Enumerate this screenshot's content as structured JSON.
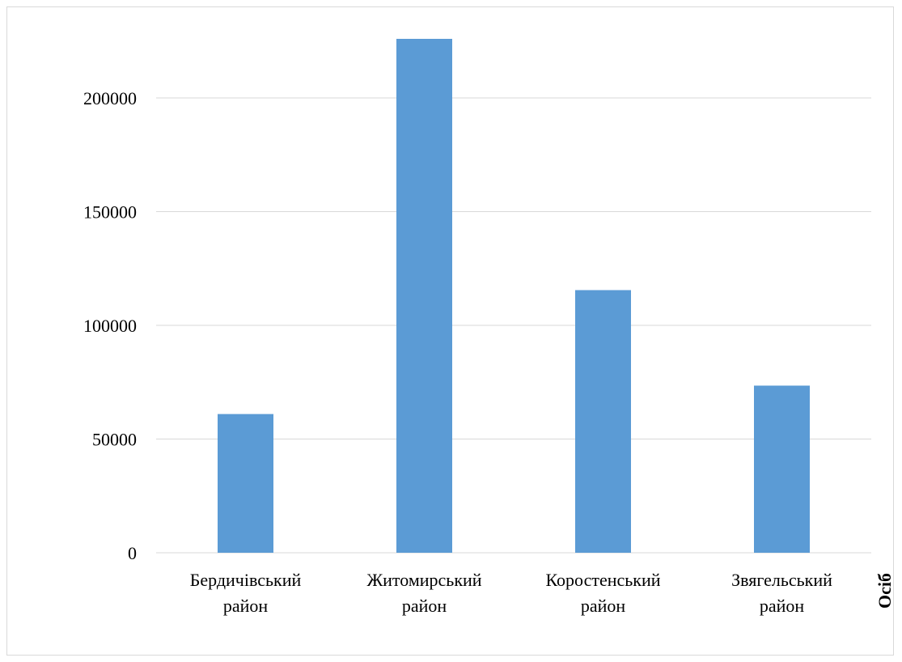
{
  "chart_data": {
    "type": "bar",
    "title": "",
    "xlabel": "",
    "ylabel": "Осіб",
    "categories": [
      [
        "Бердичівський",
        "район"
      ],
      [
        "Житомирський",
        "район"
      ],
      [
        "Коростенський",
        "район"
      ],
      [
        "Звягельський",
        "район"
      ]
    ],
    "values": [
      61000,
      226000,
      115500,
      73500
    ],
    "ylim": [
      0,
      226000
    ],
    "yticks": [
      0,
      50000,
      100000,
      150000,
      200000
    ],
    "grid": true,
    "legend": "none",
    "bar_color": "#5b9bd5",
    "grid_color": "#d9d9d9",
    "axis_color": "#d9d9d9"
  }
}
